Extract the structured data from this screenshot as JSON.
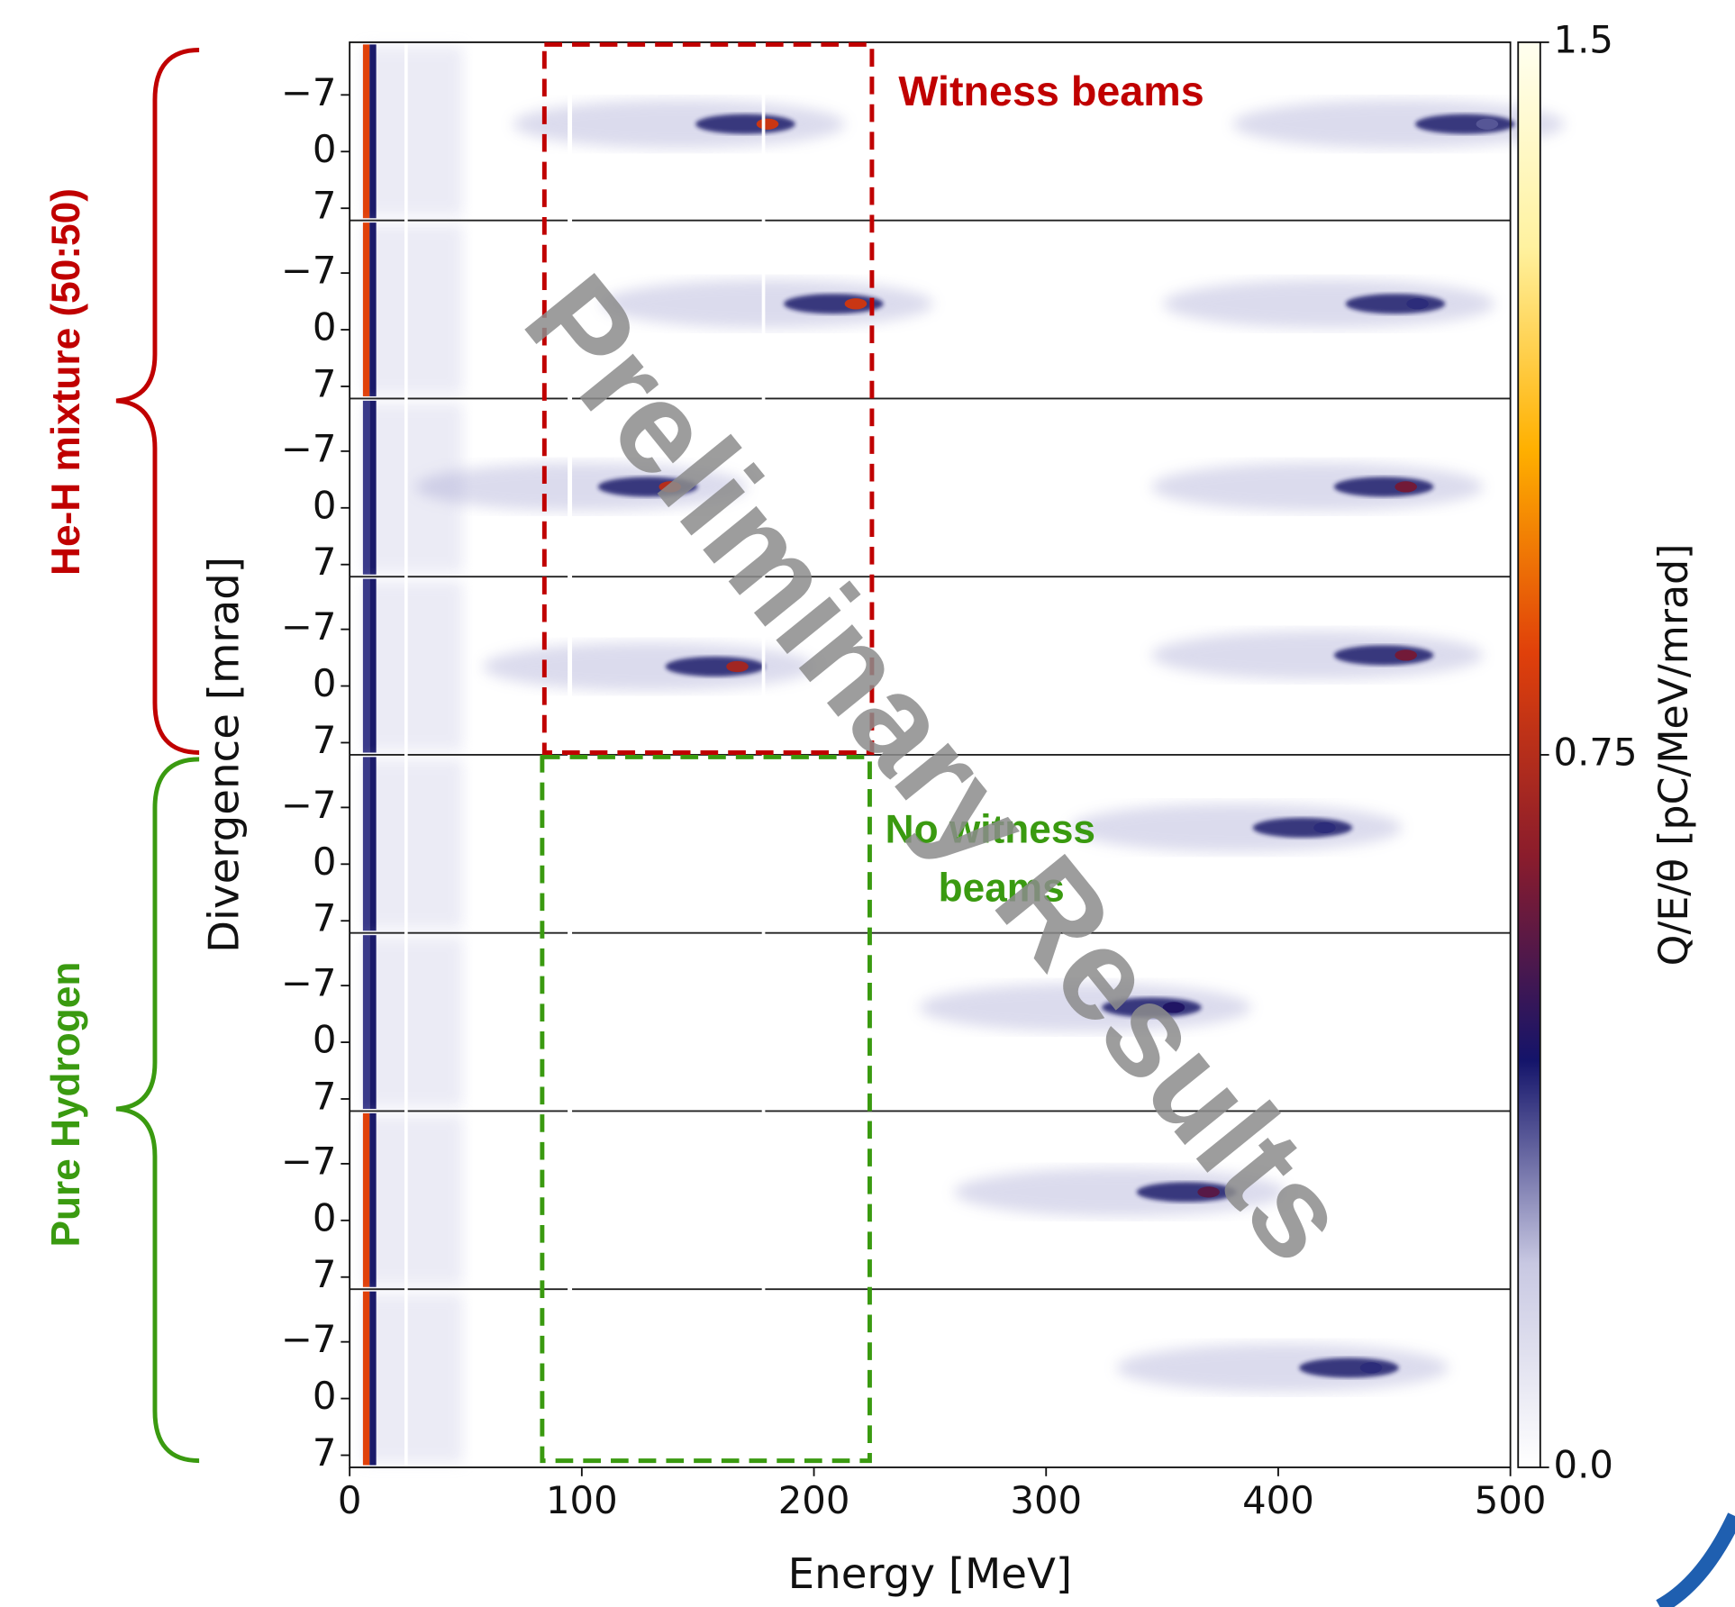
{
  "chart_data": {
    "type": "heatmap-stack",
    "xlabel": "Energy [MeV]",
    "ylabel": "Divergence [mrad]",
    "colorbar_label": "Q/E/θ [pC/MeV/mrad]",
    "xlim": [
      0,
      500
    ],
    "xticks": [
      0,
      100,
      200,
      300,
      400,
      500
    ],
    "ylim": [
      -13.5,
      8.5
    ],
    "yticks": [
      {
        "value": -7,
        "label": "−7"
      },
      0,
      7
    ],
    "clim": [
      0,
      1.5
    ],
    "cticks": [
      {
        "value": 0,
        "label": "0.0"
      },
      0.75,
      1.5
    ],
    "colormap": [
      "#ffffff",
      "#c8c8e2",
      "#14146a",
      "#8a1c2c",
      "#e0400a",
      "#ffb000",
      "#fff2a0",
      "#fffff0"
    ],
    "panels": [
      {
        "peaks": [
          {
            "energy": 180,
            "divergence": -3.4,
            "value": 0.8
          },
          {
            "energy": 490,
            "divergence": -3.4,
            "value": 0.35
          }
        ]
      },
      {
        "peaks": [
          {
            "energy": 218,
            "divergence": -3.2,
            "value": 0.8
          },
          {
            "energy": 460,
            "divergence": -3.2,
            "value": 0.4
          }
        ]
      },
      {
        "peaks": [
          {
            "energy": 138,
            "divergence": -2.6,
            "value": 0.75
          },
          {
            "energy": 455,
            "divergence": -2.6,
            "value": 0.6
          }
        ]
      },
      {
        "peaks": [
          {
            "energy": 167,
            "divergence": -2.4,
            "value": 0.7
          },
          {
            "energy": 455,
            "divergence": -3.8,
            "value": 0.6
          }
        ]
      },
      {
        "peaks": [
          {
            "energy": 420,
            "divergence": -4.5,
            "value": 0.4
          }
        ]
      },
      {
        "peaks": [
          {
            "energy": 355,
            "divergence": -4.3,
            "value": 0.45
          }
        ]
      },
      {
        "peaks": [
          {
            "energy": 370,
            "divergence": -3.5,
            "value": 0.55
          }
        ]
      },
      {
        "peaks": [
          {
            "energy": 440,
            "divergence": -3.8,
            "value": 0.4
          }
        ]
      }
    ],
    "annotations": {
      "group_top": "He-H mixture (50:50)",
      "group_bottom": "Pure Hydrogen",
      "witness": "Witness beams",
      "no_witness": [
        "No witness",
        "beams"
      ],
      "watermark": "Preliminary Results"
    }
  }
}
